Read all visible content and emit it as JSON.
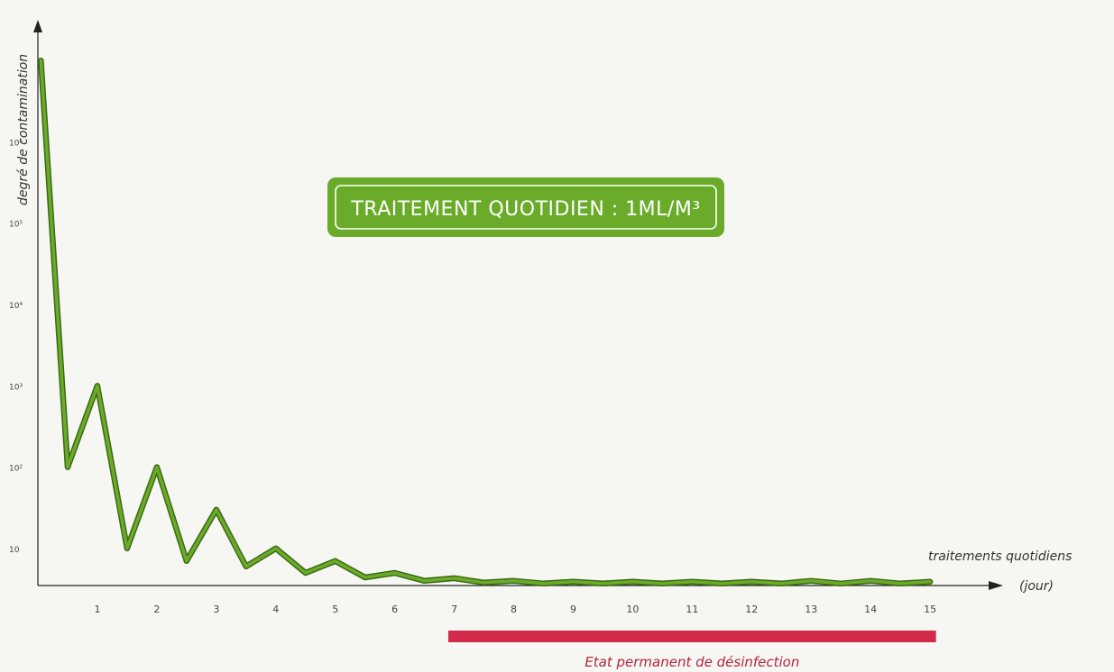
{
  "chart_data": {
    "type": "line",
    "title": "TRAITEMENT QUOTIDIEN : 1ML/M³",
    "ylabel": "degré de contamination",
    "xlabel_line1": "traitements quotidiens",
    "xlabel_line2": "(jour)",
    "x_ticks": [
      "1",
      "2",
      "3",
      "4",
      "5",
      "6",
      "7",
      "8",
      "9",
      "10",
      "11",
      "12",
      "13",
      "14",
      "15"
    ],
    "y_ticks": [
      {
        "value": 10,
        "label": "10"
      },
      {
        "value": 100,
        "label": "10²"
      },
      {
        "value": 1000,
        "label": "10³"
      },
      {
        "value": 10000,
        "label": "10⁴"
      },
      {
        "value": 100000,
        "label": "10⁵"
      },
      {
        "value": 1000000,
        "label": "10⁶"
      }
    ],
    "y_scale": "log",
    "xlim": [
      0,
      16.5
    ],
    "ylim": [
      3.5,
      20000000
    ],
    "grid": false,
    "series": [
      {
        "color": "#6aab2a",
        "points": [
          [
            0.05,
            10000000
          ],
          [
            0.5,
            100
          ],
          [
            1,
            1000
          ],
          [
            1.5,
            10
          ],
          [
            2,
            100
          ],
          [
            2.5,
            7
          ],
          [
            3,
            30
          ],
          [
            3.5,
            6
          ],
          [
            4,
            10
          ],
          [
            4.5,
            5
          ],
          [
            5,
            7
          ],
          [
            5.5,
            4.4
          ],
          [
            6,
            5
          ],
          [
            6.5,
            4
          ],
          [
            7,
            4.3
          ],
          [
            7.5,
            3.8
          ],
          [
            8,
            4
          ],
          [
            8.5,
            3.7
          ],
          [
            9,
            3.9
          ],
          [
            9.5,
            3.7
          ],
          [
            10,
            3.9
          ],
          [
            10.5,
            3.7
          ],
          [
            11,
            3.9
          ],
          [
            11.5,
            3.7
          ],
          [
            12,
            3.9
          ],
          [
            12.5,
            3.7
          ],
          [
            13,
            4
          ],
          [
            13.5,
            3.7
          ],
          [
            14,
            4
          ],
          [
            14.5,
            3.7
          ],
          [
            15,
            3.9
          ]
        ]
      }
    ],
    "annotation": {
      "text": "Etat permanent de désinfection",
      "x_range": [
        6.9,
        15.1
      ],
      "color": "#d12a4a"
    },
    "banner_color": "#6aab2a"
  }
}
